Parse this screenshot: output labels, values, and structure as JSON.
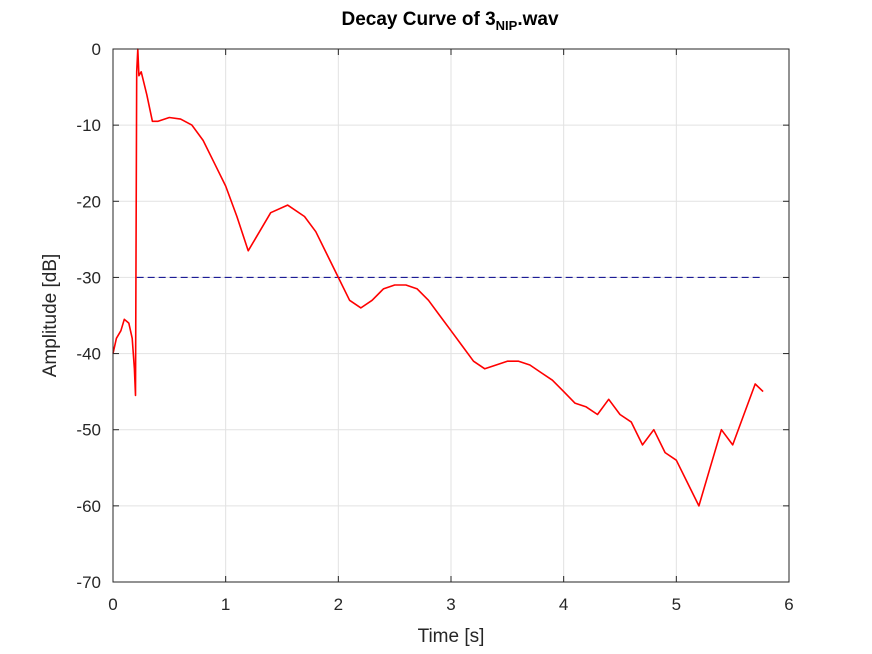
{
  "chart_data": {
    "type": "line",
    "title_main": "Decay Curve of 3",
    "title_sub": "NIP",
    "title_suffix": ".wav",
    "xlabel": "Time [s]",
    "ylabel": "Amplitude [dB]",
    "xlim": [
      0,
      6
    ],
    "ylim": [
      -70,
      0
    ],
    "xticks": [
      0,
      1,
      2,
      3,
      4,
      5,
      6
    ],
    "yticks": [
      0,
      -10,
      -20,
      -30,
      -40,
      -50,
      -60,
      -70
    ],
    "grid": true,
    "colors": {
      "decay": "#ff0000",
      "threshold": "#00008b"
    },
    "threshold": {
      "y": -30,
      "x": [
        0.21,
        5.77
      ],
      "style": "dashed"
    },
    "series": [
      {
        "color": "#ff0000",
        "x": [
          0.0,
          0.03,
          0.07,
          0.1,
          0.14,
          0.17,
          0.19,
          0.2,
          0.21,
          0.22,
          0.23,
          0.25,
          0.3,
          0.35,
          0.4,
          0.5,
          0.6,
          0.7,
          0.8,
          0.9,
          1.0,
          1.1,
          1.2,
          1.3,
          1.4,
          1.55,
          1.7,
          1.8,
          1.9,
          2.0,
          2.1,
          2.2,
          2.3,
          2.4,
          2.5,
          2.6,
          2.7,
          2.8,
          2.9,
          3.0,
          3.1,
          3.2,
          3.3,
          3.4,
          3.5,
          3.6,
          3.7,
          3.8,
          3.9,
          4.0,
          4.1,
          4.2,
          4.3,
          4.4,
          4.5,
          4.6,
          4.7,
          4.8,
          4.9,
          5.0,
          5.1,
          5.2,
          5.3,
          5.4,
          5.5,
          5.6,
          5.7,
          5.77
        ],
        "y": [
          -40,
          -38,
          -37,
          -35.5,
          -36,
          -38,
          -42,
          -45.5,
          -3,
          0,
          -3.5,
          -3,
          -6,
          -9.5,
          -9.5,
          -9,
          -9.2,
          -10,
          -12,
          -15,
          -18,
          -22,
          -26.5,
          -24,
          -21.5,
          -20.5,
          -22,
          -24,
          -27,
          -30,
          -33,
          -34,
          -33,
          -31.5,
          -31,
          -31,
          -31.5,
          -33,
          -35,
          -37,
          -39,
          -41,
          -42,
          -41.5,
          -41,
          -41,
          -41.5,
          -42.5,
          -43.5,
          -45,
          -46.5,
          -47,
          -48,
          -46,
          -48,
          -49,
          -52,
          -50,
          -53,
          -54,
          -57,
          -60,
          -55,
          -50,
          -52,
          -48,
          -44,
          -45
        ]
      }
    ]
  }
}
